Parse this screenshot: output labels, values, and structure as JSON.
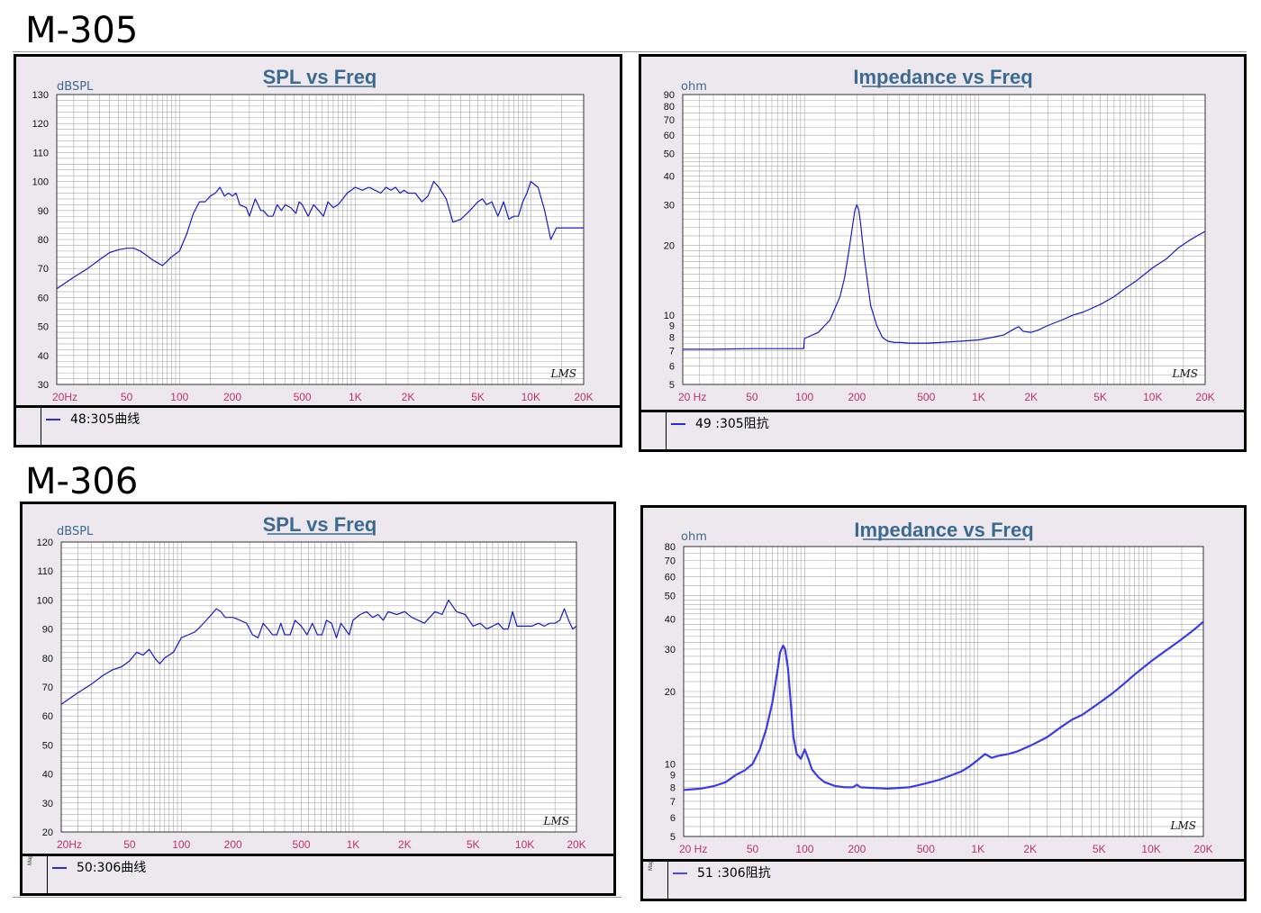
{
  "page": {
    "heading_top": "M-305",
    "heading_bottom": "M-306"
  },
  "chart_data": [
    {
      "id": "m305-spl",
      "type": "line",
      "title": "SPL vs Freq",
      "ylabel": "dBSPL",
      "xscale": "log",
      "xlim": [
        20,
        20000
      ],
      "ylim": [
        30,
        130
      ],
      "grid": true,
      "yticks": [
        30,
        40,
        50,
        60,
        70,
        80,
        90,
        100,
        110,
        120,
        130
      ],
      "xticks": [
        {
          "v": 20,
          "l": "20Hz"
        },
        {
          "v": 50,
          "l": "50"
        },
        {
          "v": 100,
          "l": "100"
        },
        {
          "v": 200,
          "l": "200"
        },
        {
          "v": 500,
          "l": "500"
        },
        {
          "v": 1000,
          "l": "1K"
        },
        {
          "v": 2000,
          "l": "2K"
        },
        {
          "v": 5000,
          "l": "5K"
        },
        {
          "v": 10000,
          "l": "10K"
        },
        {
          "v": 20000,
          "l": "20K"
        }
      ],
      "watermark": "LMS",
      "series": [
        {
          "name": "48:305曲线",
          "color": "#1a1ac8",
          "x": [
            20,
            25,
            30,
            35,
            40,
            45,
            50,
            55,
            60,
            65,
            70,
            75,
            80,
            85,
            90,
            100,
            110,
            120,
            130,
            140,
            150,
            160,
            170,
            180,
            190,
            200,
            210,
            220,
            240,
            250,
            270,
            280,
            290,
            300,
            320,
            340,
            360,
            380,
            400,
            430,
            460,
            480,
            500,
            540,
            580,
            620,
            660,
            700,
            750,
            800,
            850,
            900,
            950,
            1000,
            1100,
            1200,
            1300,
            1400,
            1500,
            1600,
            1700,
            1800,
            1900,
            2000,
            2200,
            2400,
            2600,
            2800,
            3000,
            3300,
            3600,
            4000,
            4500,
            5000,
            5300,
            5600,
            6000,
            6500,
            7000,
            7500,
            8000,
            8500,
            9000,
            9500,
            10000,
            11000,
            12000,
            13000,
            14000,
            15000,
            16000,
            17000,
            18000,
            19000,
            20000
          ],
          "y": [
            63,
            67,
            70,
            73,
            75.5,
            76.5,
            77,
            77,
            76,
            74.5,
            73,
            72,
            71,
            72.5,
            74,
            76,
            82,
            89,
            93,
            93,
            95,
            96,
            98,
            95,
            96,
            95,
            96,
            92,
            91,
            88,
            94,
            92,
            90,
            90,
            88,
            88,
            92,
            90,
            92,
            91,
            89,
            93,
            92,
            88,
            92,
            90,
            88,
            93,
            91,
            92,
            94,
            96,
            97,
            98,
            97,
            98,
            97,
            96,
            98,
            97,
            98,
            96,
            97,
            96,
            96,
            93,
            95,
            100,
            98,
            94,
            86,
            87,
            90,
            93,
            94,
            92,
            93,
            88,
            93,
            87,
            88,
            88,
            93,
            96,
            100,
            98,
            90,
            80,
            84,
            84,
            84,
            84,
            84,
            84,
            84
          ]
        }
      ]
    },
    {
      "id": "m305-imp",
      "type": "line",
      "title": "Impedance vs Freq",
      "ylabel": "ohm",
      "xscale": "log",
      "yscale": "log",
      "xlim": [
        20,
        20000
      ],
      "ylim": [
        5,
        90
      ],
      "grid": true,
      "yticks": [
        5,
        6,
        7,
        8,
        9,
        10,
        20,
        30,
        40,
        50,
        60,
        70,
        80,
        90
      ],
      "xticks": [
        {
          "v": 20,
          "l": "20 Hz"
        },
        {
          "v": 50,
          "l": "50"
        },
        {
          "v": 100,
          "l": "100"
        },
        {
          "v": 200,
          "l": "200"
        },
        {
          "v": 500,
          "l": "500"
        },
        {
          "v": 1000,
          "l": "1K"
        },
        {
          "v": 2000,
          "l": "2K"
        },
        {
          "v": 5000,
          "l": "5K"
        },
        {
          "v": 10000,
          "l": "10K"
        },
        {
          "v": 20000,
          "l": "20K"
        }
      ],
      "watermark": "LMS",
      "series": [
        {
          "name": "49 :305阻抗",
          "color": "#1a1ac8",
          "x": [
            20,
            30,
            50,
            80,
            99,
            100,
            120,
            140,
            160,
            170,
            180,
            190,
            195,
            200,
            205,
            210,
            220,
            240,
            260,
            280,
            300,
            330,
            360,
            400,
            500,
            600,
            800,
            1000,
            1100,
            1200,
            1400,
            1600,
            1700,
            1800,
            2000,
            2200,
            2500,
            3000,
            3500,
            4000,
            5000,
            6000,
            7000,
            8000,
            10000,
            12000,
            14000,
            16000,
            18000,
            20000
          ],
          "y": [
            7.1,
            7.1,
            7.15,
            7.15,
            7.15,
            7.9,
            8.4,
            9.5,
            12,
            14.5,
            19,
            25,
            28.5,
            30,
            28.5,
            25,
            18,
            11,
            9,
            8,
            7.7,
            7.6,
            7.6,
            7.55,
            7.55,
            7.6,
            7.7,
            7.8,
            7.9,
            8,
            8.2,
            8.7,
            8.9,
            8.5,
            8.4,
            8.6,
            9,
            9.5,
            10,
            10.3,
            11.1,
            12,
            13.1,
            14,
            16,
            17.5,
            19.5,
            20.9,
            22,
            23
          ]
        }
      ]
    },
    {
      "id": "m306-spl",
      "type": "line",
      "title": "SPL vs Freq",
      "ylabel": "dBSPL",
      "xscale": "log",
      "xlim": [
        20,
        20000
      ],
      "ylim": [
        20,
        120
      ],
      "grid": true,
      "yticks": [
        20,
        30,
        40,
        50,
        60,
        70,
        80,
        90,
        100,
        110,
        120
      ],
      "xticks": [
        {
          "v": 20,
          "l": "20Hz"
        },
        {
          "v": 50,
          "l": "50"
        },
        {
          "v": 100,
          "l": "100"
        },
        {
          "v": 200,
          "l": "200"
        },
        {
          "v": 500,
          "l": "500"
        },
        {
          "v": 1000,
          "l": "1K"
        },
        {
          "v": 2000,
          "l": "2K"
        },
        {
          "v": 5000,
          "l": "5K"
        },
        {
          "v": 10000,
          "l": "10K"
        },
        {
          "v": 20000,
          "l": "20K"
        }
      ],
      "watermark": "LMS",
      "series": [
        {
          "name": "50:306曲线",
          "color": "#1a1ac8",
          "x": [
            20,
            25,
            30,
            35,
            40,
            45,
            50,
            55,
            60,
            65,
            70,
            75,
            80,
            90,
            100,
            110,
            120,
            130,
            140,
            150,
            160,
            170,
            180,
            200,
            220,
            240,
            260,
            280,
            300,
            320,
            340,
            360,
            380,
            400,
            430,
            460,
            500,
            540,
            580,
            620,
            660,
            700,
            750,
            800,
            850,
            900,
            950,
            1000,
            1100,
            1200,
            1300,
            1400,
            1500,
            1600,
            1800,
            2000,
            2200,
            2400,
            2600,
            3000,
            3300,
            3600,
            4000,
            4500,
            5000,
            5500,
            6000,
            6500,
            7000,
            7500,
            8000,
            8500,
            9000,
            10000,
            11000,
            12000,
            13000,
            14000,
            15000,
            16000,
            17000,
            18000,
            19000,
            20000
          ],
          "y": [
            64,
            68,
            71,
            74,
            76,
            77,
            79,
            82,
            81,
            83,
            80,
            78,
            80,
            82,
            87,
            88,
            89,
            91,
            93,
            95,
            97,
            96,
            94,
            94,
            93,
            92,
            88,
            87,
            92,
            90,
            88,
            88,
            92,
            88,
            88,
            93,
            91,
            88,
            92,
            88,
            88,
            93,
            92,
            87,
            92,
            90,
            88,
            93,
            95,
            96,
            94,
            95,
            93,
            96,
            95,
            96,
            94,
            93,
            92,
            96,
            95,
            100,
            96,
            95,
            91,
            92,
            90,
            91,
            92,
            90,
            90,
            96,
            91,
            91,
            91,
            92,
            91,
            92,
            92,
            93,
            97,
            93,
            90,
            91
          ]
        }
      ]
    },
    {
      "id": "m306-imp",
      "type": "line",
      "title": "Impedance vs Freq",
      "ylabel": "ohm",
      "xscale": "log",
      "yscale": "log",
      "xlim": [
        20,
        20000
      ],
      "ylim": [
        5,
        80
      ],
      "grid": true,
      "yticks": [
        5,
        6,
        7,
        8,
        9,
        10,
        20,
        30,
        40,
        50,
        60,
        70,
        80
      ],
      "xticks": [
        {
          "v": 20,
          "l": "20 Hz"
        },
        {
          "v": 50,
          "l": "50"
        },
        {
          "v": 100,
          "l": "100"
        },
        {
          "v": 200,
          "l": "200"
        },
        {
          "v": 500,
          "l": "500"
        },
        {
          "v": 1000,
          "l": "1K"
        },
        {
          "v": 2000,
          "l": "2K"
        },
        {
          "v": 5000,
          "l": "5K"
        },
        {
          "v": 10000,
          "l": "10K"
        },
        {
          "v": 20000,
          "l": "20K"
        }
      ],
      "watermark": "LMS",
      "series": [
        {
          "name": "51 :306阻抗",
          "color": "#3b3bea",
          "x": [
            20,
            25,
            30,
            35,
            40,
            45,
            50,
            55,
            60,
            65,
            70,
            72,
            75,
            77,
            80,
            83,
            86,
            90,
            95,
            100,
            105,
            110,
            120,
            130,
            150,
            170,
            190,
            200,
            210,
            250,
            300,
            400,
            500,
            600,
            800,
            900,
            1000,
            1100,
            1200,
            1300,
            1500,
            1700,
            2000,
            2500,
            3000,
            3500,
            4000,
            5000,
            6000,
            7000,
            8000,
            10000,
            12000,
            14000,
            16000,
            18000,
            20000
          ],
          "y": [
            7.8,
            7.9,
            8.1,
            8.4,
            9,
            9.4,
            10,
            11.5,
            14,
            18,
            25,
            29,
            31,
            30,
            25,
            18,
            13,
            11,
            10.5,
            11.5,
            10.5,
            9.5,
            8.8,
            8.4,
            8.1,
            8,
            8,
            8.2,
            8,
            7.95,
            7.9,
            8,
            8.3,
            8.6,
            9.3,
            9.8,
            10.4,
            11,
            10.6,
            10.8,
            11,
            11.3,
            11.9,
            12.9,
            14.2,
            15.3,
            16,
            17.9,
            19.7,
            21.6,
            23.5,
            26.7,
            29.4,
            31.8,
            34.2,
            36.5,
            39
          ]
        }
      ]
    }
  ]
}
